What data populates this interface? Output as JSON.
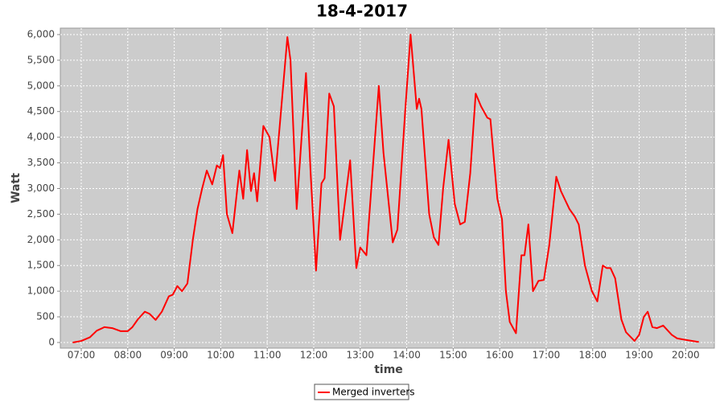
{
  "chart_data": {
    "type": "line",
    "title": "18-4-2017",
    "x_label": "time",
    "y_label": "Watt",
    "x": [
      "06:49",
      "07:00",
      "07:11",
      "07:20",
      "07:30",
      "07:40",
      "07:51",
      "08:00",
      "08:06",
      "08:13",
      "08:22",
      "08:28",
      "08:36",
      "08:44",
      "08:53",
      "08:58",
      "09:04",
      "09:10",
      "09:17",
      "09:24",
      "09:30",
      "09:36",
      "09:42",
      "09:49",
      "09:55",
      "09:59",
      "10:03",
      "10:08",
      "10:15",
      "10:24",
      "10:29",
      "10:34",
      "10:39",
      "10:43",
      "10:47",
      "10:55",
      "11:03",
      "11:10",
      "11:26",
      "11:30",
      "11:38",
      "11:50",
      "11:56",
      "12:03",
      "12:10",
      "12:14",
      "12:20",
      "12:26",
      "12:34",
      "12:40",
      "12:47",
      "12:55",
      "13:00",
      "13:08",
      "13:24",
      "13:30",
      "13:42",
      "13:48",
      "13:58",
      "14:05",
      "14:13",
      "14:16",
      "14:19",
      "14:29",
      "14:35",
      "14:41",
      "14:47",
      "14:54",
      "15:02",
      "15:09",
      "15:15",
      "15:22",
      "15:29",
      "15:36",
      "15:44",
      "15:48",
      "15:57",
      "16:03",
      "16:08",
      "16:13",
      "16:21",
      "16:28",
      "16:32",
      "16:37",
      "16:43",
      "16:50",
      "16:57",
      "17:04",
      "17:13",
      "17:19",
      "17:30",
      "17:37",
      "17:42",
      "17:50",
      "17:59",
      "18:06",
      "18:13",
      "18:18",
      "18:23",
      "18:29",
      "18:37",
      "18:43",
      "18:54",
      "19:00",
      "19:06",
      "19:11",
      "19:17",
      "19:23",
      "19:31",
      "19:42",
      "19:49",
      "20:00",
      "20:17"
    ],
    "series": [
      {
        "name": "Merged inverters",
        "color": "#ff0000",
        "values": [
          0,
          30,
          100,
          230,
          300,
          280,
          220,
          220,
          300,
          450,
          600,
          560,
          440,
          600,
          900,
          930,
          1100,
          1000,
          1150,
          2000,
          2600,
          3000,
          3350,
          3080,
          3450,
          3400,
          3650,
          2500,
          2130,
          3350,
          2800,
          3750,
          2950,
          3300,
          2750,
          4220,
          4000,
          3150,
          5950,
          5500,
          2600,
          5250,
          3300,
          1400,
          3100,
          3200,
          4850,
          4600,
          2000,
          2700,
          3550,
          1450,
          1850,
          1700,
          5000,
          3700,
          1950,
          2200,
          4500,
          6000,
          4550,
          4750,
          4550,
          2500,
          2050,
          1900,
          3000,
          3950,
          2700,
          2300,
          2350,
          3300,
          4850,
          4600,
          4380,
          4350,
          2800,
          2400,
          1000,
          400,
          180,
          1700,
          1700,
          2300,
          1000,
          1200,
          1220,
          1900,
          3230,
          2950,
          2600,
          2450,
          2300,
          1500,
          1000,
          800,
          1500,
          1450,
          1450,
          1250,
          450,
          200,
          30,
          150,
          500,
          600,
          300,
          280,
          330,
          150,
          80,
          50,
          10
        ]
      }
    ],
    "xlim": [
      "06:33",
      "20:37"
    ],
    "xticks": [
      "07:00",
      "08:00",
      "09:00",
      "10:00",
      "11:00",
      "12:00",
      "13:00",
      "14:00",
      "15:00",
      "16:00",
      "17:00",
      "18:00",
      "19:00",
      "20:00"
    ],
    "ylim": [
      -110,
      6125
    ],
    "yticks": [
      0,
      500,
      {
        "value": 1000,
        "label": "1,000"
      },
      {
        "value": 1500,
        "label": "1,500"
      },
      {
        "value": 2000,
        "label": "2,000"
      },
      {
        "value": 2500,
        "label": "2,500"
      },
      {
        "value": 3000,
        "label": "3,000"
      },
      {
        "value": 3500,
        "label": "3,500"
      },
      {
        "value": 4000,
        "label": "4,000"
      },
      {
        "value": 4500,
        "label": "4,500"
      },
      {
        "value": 5000,
        "label": "5,000"
      },
      {
        "value": 5500,
        "label": "5,500"
      },
      {
        "value": 6000,
        "label": "6,000"
      }
    ],
    "grid": true,
    "legend": "bottom"
  }
}
